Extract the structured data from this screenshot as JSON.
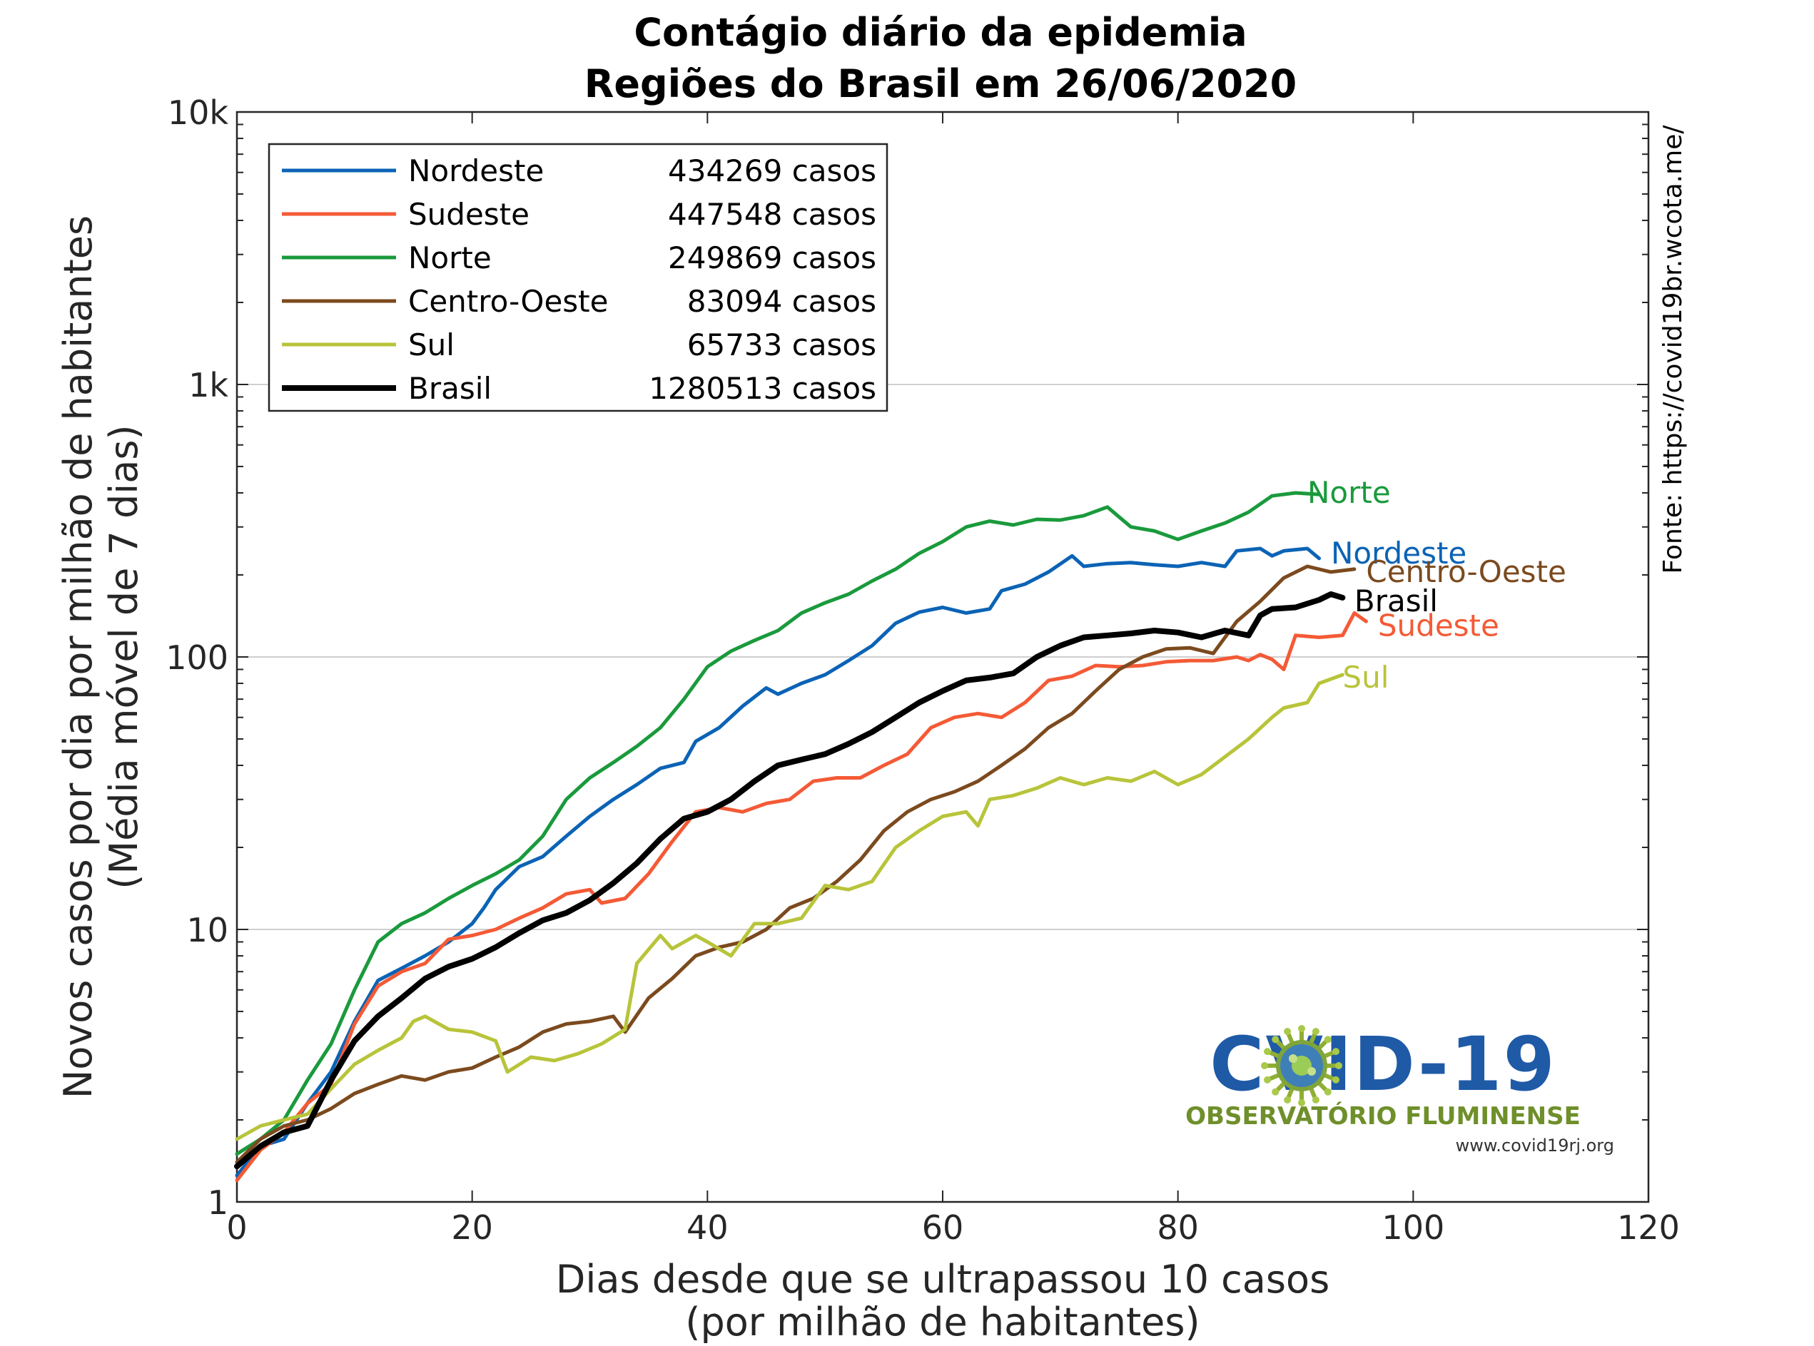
{
  "chart_data": {
    "type": "line",
    "title_line1": "Contágio diário da epidemia",
    "title_line2": "Regiões do Brasil em 26/06/2020",
    "xlabel_line1": "Dias desde que se ultrapassou 10 casos",
    "xlabel_line2": "(por milhão de habitantes)",
    "ylabel_line1": "Novos casos por dia por milhão de habitantes",
    "ylabel_line2": "(Média móvel de 7 dias)",
    "source_note": "Fonte: https://covid19br.wcota.me/",
    "xlim": [
      0,
      120
    ],
    "ylim": [
      1,
      10000
    ],
    "yscale": "log",
    "grid": "horizontal major lines",
    "legend_position": "top-left",
    "x_ticks": [
      "0",
      "20",
      "40",
      "60",
      "80",
      "100",
      "120"
    ],
    "y_ticks": [
      "1",
      "10",
      "100",
      "1k",
      "10k"
    ],
    "series": [
      {
        "name": "Nordeste",
        "cases_label": "434269 casos",
        "color": "#0b63b5",
        "points": [
          [
            0,
            1.25
          ],
          [
            2,
            1.6
          ],
          [
            4,
            1.7
          ],
          [
            6,
            2.3
          ],
          [
            8,
            3.0
          ],
          [
            10,
            4.6
          ],
          [
            12,
            6.5
          ],
          [
            14,
            7.2
          ],
          [
            16,
            8.0
          ],
          [
            18,
            9.0
          ],
          [
            20,
            10.5
          ],
          [
            21,
            12
          ],
          [
            22,
            14
          ],
          [
            24,
            17
          ],
          [
            26,
            18.5
          ],
          [
            28,
            22
          ],
          [
            30,
            26
          ],
          [
            32,
            30
          ],
          [
            34,
            34
          ],
          [
            36,
            39
          ],
          [
            38,
            41
          ],
          [
            39,
            49
          ],
          [
            41,
            55
          ],
          [
            43,
            66
          ],
          [
            45,
            77
          ],
          [
            46,
            73
          ],
          [
            48,
            80
          ],
          [
            50,
            86
          ],
          [
            52,
            97
          ],
          [
            54,
            110
          ],
          [
            56,
            133
          ],
          [
            58,
            146
          ],
          [
            60,
            152
          ],
          [
            62,
            145
          ],
          [
            64,
            150
          ],
          [
            65,
            175
          ],
          [
            67,
            185
          ],
          [
            69,
            205
          ],
          [
            71,
            235
          ],
          [
            72,
            215
          ],
          [
            74,
            220
          ],
          [
            76,
            222
          ],
          [
            78,
            218
          ],
          [
            80,
            215
          ],
          [
            82,
            222
          ],
          [
            84,
            215
          ],
          [
            85,
            245
          ],
          [
            87,
            250
          ],
          [
            88,
            235
          ],
          [
            89,
            245
          ],
          [
            91,
            250
          ],
          [
            92,
            230
          ]
        ]
      },
      {
        "name": "Sudeste",
        "cases_label": "447548 casos",
        "color": "#f45a36",
        "points": [
          [
            0,
            1.2
          ],
          [
            2,
            1.55
          ],
          [
            4,
            1.8
          ],
          [
            6,
            2.3
          ],
          [
            8,
            2.7
          ],
          [
            10,
            4.5
          ],
          [
            12,
            6.2
          ],
          [
            14,
            7.0
          ],
          [
            16,
            7.5
          ],
          [
            18,
            9.2
          ],
          [
            20,
            9.5
          ],
          [
            22,
            10.0
          ],
          [
            24,
            11.0
          ],
          [
            26,
            12.0
          ],
          [
            28,
            13.5
          ],
          [
            30,
            14.0
          ],
          [
            31,
            12.5
          ],
          [
            33,
            13.0
          ],
          [
            35,
            16
          ],
          [
            37,
            21
          ],
          [
            39,
            27
          ],
          [
            41,
            28
          ],
          [
            43,
            27
          ],
          [
            45,
            29
          ],
          [
            47,
            30
          ],
          [
            49,
            35
          ],
          [
            51,
            36
          ],
          [
            53,
            36
          ],
          [
            55,
            40
          ],
          [
            57,
            44
          ],
          [
            59,
            55
          ],
          [
            61,
            60
          ],
          [
            63,
            62
          ],
          [
            65,
            60
          ],
          [
            67,
            68
          ],
          [
            69,
            82
          ],
          [
            71,
            85
          ],
          [
            73,
            93
          ],
          [
            75,
            92
          ],
          [
            77,
            93
          ],
          [
            79,
            96
          ],
          [
            81,
            97
          ],
          [
            83,
            97
          ],
          [
            85,
            100
          ],
          [
            86,
            97
          ],
          [
            87,
            102
          ],
          [
            88,
            98
          ],
          [
            89,
            90
          ],
          [
            90,
            120
          ],
          [
            92,
            118
          ],
          [
            94,
            120
          ],
          [
            95,
            145
          ],
          [
            96,
            135
          ]
        ]
      },
      {
        "name": "Norte",
        "cases_label": "249869 casos",
        "color": "#1a9a3c",
        "points": [
          [
            0,
            1.5
          ],
          [
            2,
            1.7
          ],
          [
            4,
            2.0
          ],
          [
            6,
            2.8
          ],
          [
            8,
            3.8
          ],
          [
            10,
            6.0
          ],
          [
            12,
            9.0
          ],
          [
            14,
            10.5
          ],
          [
            16,
            11.5
          ],
          [
            18,
            13.0
          ],
          [
            20,
            14.5
          ],
          [
            22,
            16.0
          ],
          [
            24,
            18.0
          ],
          [
            26,
            22
          ],
          [
            28,
            30
          ],
          [
            30,
            36
          ],
          [
            32,
            41
          ],
          [
            34,
            47
          ],
          [
            36,
            55
          ],
          [
            38,
            70
          ],
          [
            40,
            92
          ],
          [
            42,
            105
          ],
          [
            44,
            115
          ],
          [
            46,
            125
          ],
          [
            48,
            145
          ],
          [
            50,
            158
          ],
          [
            52,
            170
          ],
          [
            54,
            190
          ],
          [
            56,
            210
          ],
          [
            58,
            240
          ],
          [
            60,
            265
          ],
          [
            62,
            300
          ],
          [
            64,
            315
          ],
          [
            66,
            305
          ],
          [
            68,
            320
          ],
          [
            70,
            318
          ],
          [
            72,
            330
          ],
          [
            74,
            355
          ],
          [
            76,
            300
          ],
          [
            78,
            290
          ],
          [
            80,
            270
          ],
          [
            82,
            290
          ],
          [
            84,
            310
          ],
          [
            86,
            340
          ],
          [
            88,
            390
          ],
          [
            90,
            400
          ],
          [
            92,
            395
          ]
        ]
      },
      {
        "name": "Centro-Oeste",
        "cases_label": "83094 casos",
        "color": "#7b4a1e",
        "points": [
          [
            0,
            1.4
          ],
          [
            2,
            1.7
          ],
          [
            4,
            1.9
          ],
          [
            6,
            2.0
          ],
          [
            8,
            2.2
          ],
          [
            10,
            2.5
          ],
          [
            12,
            2.7
          ],
          [
            14,
            2.9
          ],
          [
            16,
            2.8
          ],
          [
            18,
            3.0
          ],
          [
            20,
            3.1
          ],
          [
            22,
            3.4
          ],
          [
            24,
            3.7
          ],
          [
            26,
            4.2
          ],
          [
            28,
            4.5
          ],
          [
            30,
            4.6
          ],
          [
            32,
            4.8
          ],
          [
            33,
            4.2
          ],
          [
            35,
            5.6
          ],
          [
            37,
            6.6
          ],
          [
            39,
            8.0
          ],
          [
            41,
            8.6
          ],
          [
            43,
            9.0
          ],
          [
            45,
            10.0
          ],
          [
            47,
            12.0
          ],
          [
            49,
            13.0
          ],
          [
            51,
            15.0
          ],
          [
            53,
            18.0
          ],
          [
            55,
            23.0
          ],
          [
            57,
            27
          ],
          [
            59,
            30
          ],
          [
            61,
            32
          ],
          [
            63,
            35
          ],
          [
            65,
            40
          ],
          [
            67,
            46
          ],
          [
            69,
            55
          ],
          [
            71,
            62
          ],
          [
            73,
            75
          ],
          [
            75,
            90
          ],
          [
            77,
            100
          ],
          [
            79,
            107
          ],
          [
            81,
            108
          ],
          [
            83,
            103
          ],
          [
            85,
            135
          ],
          [
            87,
            160
          ],
          [
            89,
            195
          ],
          [
            91,
            215
          ],
          [
            93,
            205
          ],
          [
            95,
            210
          ]
        ]
      },
      {
        "name": "Sul",
        "cases_label": "65733 casos",
        "color": "#b8c43a",
        "points": [
          [
            0,
            1.7
          ],
          [
            2,
            1.9
          ],
          [
            4,
            2.0
          ],
          [
            6,
            2.1
          ],
          [
            8,
            2.6
          ],
          [
            10,
            3.2
          ],
          [
            12,
            3.6
          ],
          [
            14,
            4.0
          ],
          [
            15,
            4.6
          ],
          [
            16,
            4.8
          ],
          [
            18,
            4.3
          ],
          [
            20,
            4.2
          ],
          [
            22,
            3.9
          ],
          [
            23,
            3.0
          ],
          [
            25,
            3.4
          ],
          [
            27,
            3.3
          ],
          [
            29,
            3.5
          ],
          [
            31,
            3.8
          ],
          [
            33,
            4.3
          ],
          [
            34,
            7.5
          ],
          [
            36,
            9.5
          ],
          [
            37,
            8.5
          ],
          [
            39,
            9.5
          ],
          [
            40,
            9.0
          ],
          [
            42,
            8.0
          ],
          [
            44,
            10.5
          ],
          [
            46,
            10.5
          ],
          [
            48,
            11.0
          ],
          [
            50,
            14.5
          ],
          [
            52,
            14.0
          ],
          [
            54,
            15.0
          ],
          [
            56,
            20
          ],
          [
            58,
            23
          ],
          [
            60,
            26
          ],
          [
            62,
            27
          ],
          [
            63,
            24
          ],
          [
            64,
            30
          ],
          [
            66,
            31
          ],
          [
            68,
            33
          ],
          [
            70,
            36
          ],
          [
            72,
            34
          ],
          [
            74,
            36
          ],
          [
            76,
            35
          ],
          [
            78,
            38
          ],
          [
            80,
            34
          ],
          [
            82,
            37
          ],
          [
            84,
            43
          ],
          [
            86,
            50
          ],
          [
            88,
            60
          ],
          [
            89,
            65
          ],
          [
            91,
            68
          ],
          [
            92,
            80
          ],
          [
            94,
            86
          ]
        ]
      },
      {
        "name": "Brasil",
        "cases_label": "1280513 casos",
        "color": "#000000",
        "points": [
          [
            0,
            1.35
          ],
          [
            2,
            1.6
          ],
          [
            4,
            1.8
          ],
          [
            6,
            1.9
          ],
          [
            8,
            2.8
          ],
          [
            10,
            3.9
          ],
          [
            12,
            4.8
          ],
          [
            14,
            5.6
          ],
          [
            16,
            6.6
          ],
          [
            18,
            7.3
          ],
          [
            20,
            7.8
          ],
          [
            22,
            8.6
          ],
          [
            24,
            9.7
          ],
          [
            26,
            10.8
          ],
          [
            28,
            11.5
          ],
          [
            30,
            12.8
          ],
          [
            32,
            14.8
          ],
          [
            34,
            17.5
          ],
          [
            36,
            21.5
          ],
          [
            38,
            25.5
          ],
          [
            40,
            27.0
          ],
          [
            42,
            30
          ],
          [
            44,
            35
          ],
          [
            46,
            40
          ],
          [
            48,
            42
          ],
          [
            50,
            44
          ],
          [
            52,
            48
          ],
          [
            54,
            53
          ],
          [
            56,
            60
          ],
          [
            58,
            68
          ],
          [
            60,
            75
          ],
          [
            62,
            82
          ],
          [
            64,
            84
          ],
          [
            66,
            87
          ],
          [
            68,
            100
          ],
          [
            70,
            110
          ],
          [
            72,
            118
          ],
          [
            74,
            120
          ],
          [
            76,
            122
          ],
          [
            78,
            125
          ],
          [
            80,
            123
          ],
          [
            82,
            118
          ],
          [
            84,
            125
          ],
          [
            86,
            120
          ],
          [
            87,
            142
          ],
          [
            88,
            150
          ],
          [
            90,
            152
          ],
          [
            92,
            162
          ],
          [
            93,
            170
          ],
          [
            94,
            165
          ]
        ]
      }
    ],
    "end_labels": [
      {
        "text": "Norte",
        "series": "Norte",
        "x": 91,
        "y": 400
      },
      {
        "text": "Nordeste",
        "series": "Nordeste",
        "x": 93,
        "y": 240
      },
      {
        "text": "Centro-Oeste",
        "series": "Centro-Oeste",
        "x": 96,
        "y": 205
      },
      {
        "text": "Brasil",
        "series": "Brasil",
        "x": 95,
        "y": 160
      },
      {
        "text": "Sudeste",
        "series": "Sudeste",
        "x": 97,
        "y": 130
      },
      {
        "text": "Sul",
        "series": "Sul",
        "x": 94,
        "y": 84
      }
    ]
  },
  "logo": {
    "title": "COVID-19",
    "subtitle": "OBSERVATÓRIO FLUMINENSE",
    "url": "www.covid19rj.org",
    "title_color": "#1f5aa6",
    "subtitle_color": "#6e8f2a"
  }
}
